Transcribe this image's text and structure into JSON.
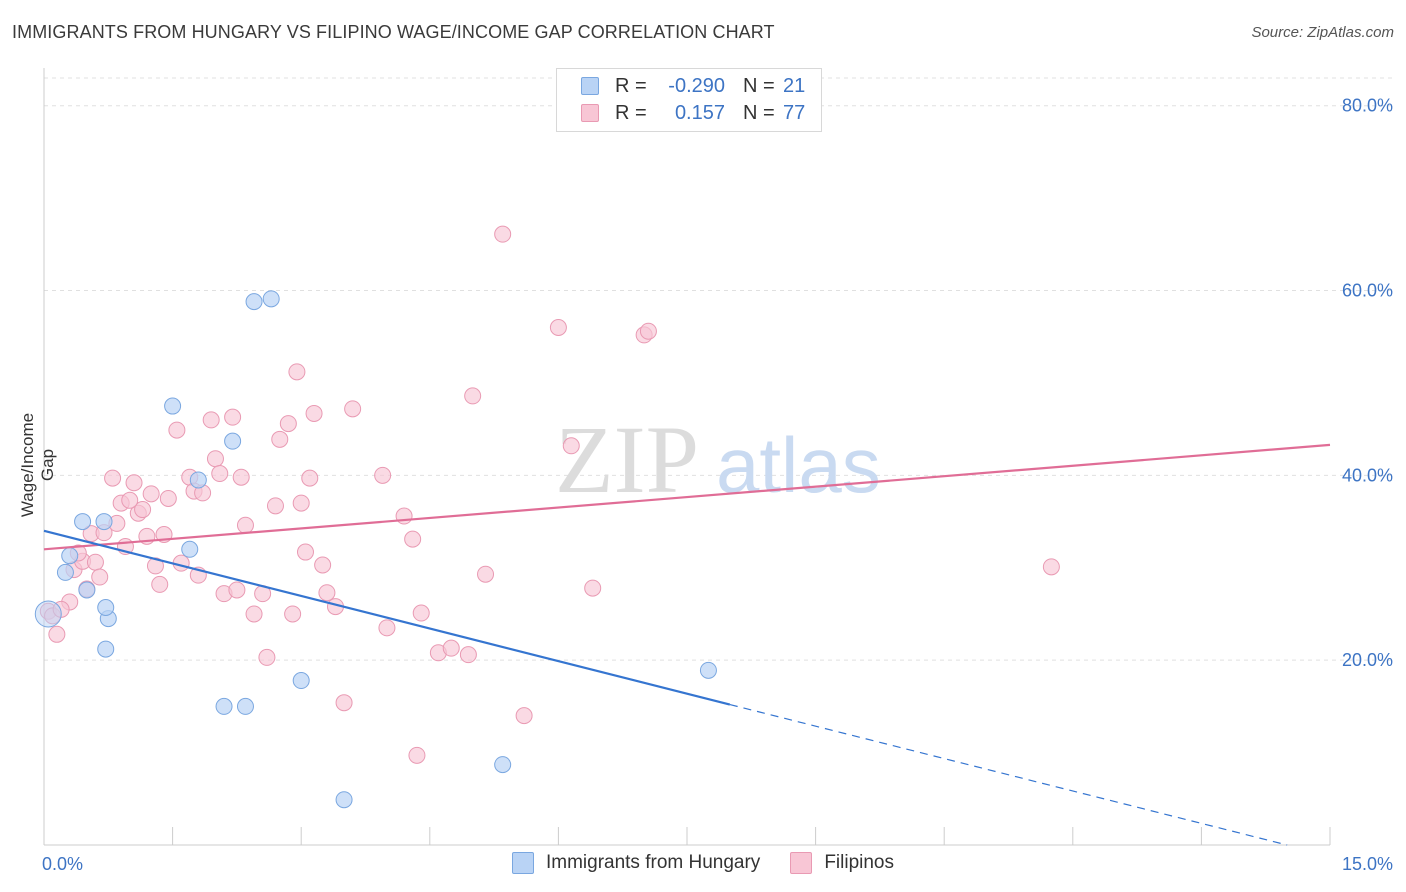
{
  "title": "IMMIGRANTS FROM HUNGARY VS FILIPINO WAGE/INCOME GAP CORRELATION CHART",
  "source": "Source: ZipAtlas.com",
  "watermark": {
    "zip": "ZIP",
    "atlas": "atlas"
  },
  "legend": {
    "series1": {
      "r_label": "R =",
      "r_value": "-0.290",
      "n_label": "N =",
      "n_value": "21"
    },
    "series2": {
      "r_label": "R =",
      "r_value": "0.157",
      "n_label": "N =",
      "n_value": "77"
    }
  },
  "colors": {
    "blue_fill": "#b9d3f5",
    "blue_stroke": "#7aa7e0",
    "blue_line": "#3575d0",
    "pink_fill": "#f8c6d5",
    "pink_stroke": "#e99ab3",
    "pink_line": "#e06d96",
    "tick_text": "#3d74c4",
    "grid": "#e0e0e0"
  },
  "chart_data": {
    "type": "scatter",
    "title": "IMMIGRANTS FROM HUNGARY VS FILIPINO WAGE/INCOME GAP CORRELATION CHART",
    "xlabel": "",
    "ylabel": "Wage/Income Gap",
    "xlim": [
      0,
      15
    ],
    "ylim": [
      0,
      83
    ],
    "x_tick_labels": [
      "0.0%",
      "15.0%"
    ],
    "y_ticks": [
      20,
      40,
      60,
      80
    ],
    "y_tick_labels": [
      "20.0%",
      "40.0%",
      "60.0%",
      "80.0%"
    ],
    "grid": true,
    "legend_position": "top-center",
    "series": [
      {
        "name": "Immigrants from Hungary",
        "color": "blue",
        "points": [
          [
            0.05,
            25.0
          ],
          [
            0.25,
            29.5
          ],
          [
            0.3,
            31.3
          ],
          [
            0.45,
            35.0
          ],
          [
            0.5,
            27.6
          ],
          [
            0.7,
            35.0
          ],
          [
            0.72,
            21.2
          ],
          [
            0.75,
            24.5
          ],
          [
            1.5,
            47.5
          ],
          [
            1.7,
            32.0
          ],
          [
            1.8,
            39.5
          ],
          [
            2.2,
            43.7
          ],
          [
            2.1,
            15.0
          ],
          [
            2.35,
            15.0
          ],
          [
            2.45,
            58.8
          ],
          [
            2.65,
            59.1
          ],
          [
            3.0,
            17.8
          ],
          [
            3.5,
            4.9
          ],
          [
            5.35,
            8.7
          ],
          [
            7.75,
            18.9
          ],
          [
            0.72,
            25.7
          ]
        ],
        "trend": {
          "x": [
            0.0,
            8.0
          ],
          "y": [
            34.0,
            15.2
          ],
          "dashed_to": [
            14.5,
            0.0
          ]
        }
      },
      {
        "name": "Filipinos",
        "color": "pink",
        "points": [
          [
            0.05,
            25.3
          ],
          [
            0.15,
            22.8
          ],
          [
            0.3,
            26.3
          ],
          [
            0.35,
            29.8
          ],
          [
            0.45,
            30.7
          ],
          [
            0.5,
            27.7
          ],
          [
            0.55,
            33.7
          ],
          [
            0.6,
            30.6
          ],
          [
            0.65,
            29.0
          ],
          [
            0.7,
            33.8
          ],
          [
            0.8,
            39.7
          ],
          [
            0.85,
            34.8
          ],
          [
            0.9,
            37.0
          ],
          [
            0.95,
            32.3
          ],
          [
            1.05,
            39.2
          ],
          [
            1.1,
            35.9
          ],
          [
            1.15,
            36.3
          ],
          [
            1.2,
            33.4
          ],
          [
            1.25,
            38.0
          ],
          [
            1.3,
            30.2
          ],
          [
            1.35,
            28.2
          ],
          [
            1.4,
            33.6
          ],
          [
            1.45,
            37.5
          ],
          [
            1.55,
            44.9
          ],
          [
            1.6,
            30.5
          ],
          [
            1.7,
            39.8
          ],
          [
            1.75,
            38.3
          ],
          [
            1.8,
            29.2
          ],
          [
            1.85,
            38.1
          ],
          [
            1.95,
            46.0
          ],
          [
            2.0,
            41.8
          ],
          [
            2.05,
            40.2
          ],
          [
            2.1,
            27.2
          ],
          [
            2.2,
            46.3
          ],
          [
            2.25,
            27.6
          ],
          [
            2.3,
            39.8
          ],
          [
            2.35,
            34.6
          ],
          [
            2.45,
            25.0
          ],
          [
            2.55,
            27.2
          ],
          [
            2.6,
            20.3
          ],
          [
            2.7,
            36.7
          ],
          [
            2.75,
            43.9
          ],
          [
            2.85,
            45.6
          ],
          [
            2.9,
            25.0
          ],
          [
            2.95,
            51.2
          ],
          [
            3.0,
            37.0
          ],
          [
            3.05,
            31.7
          ],
          [
            3.1,
            39.7
          ],
          [
            3.15,
            46.7
          ],
          [
            3.25,
            30.3
          ],
          [
            3.3,
            27.3
          ],
          [
            3.4,
            25.8
          ],
          [
            3.5,
            15.4
          ],
          [
            3.6,
            47.2
          ],
          [
            3.95,
            40.0
          ],
          [
            4.0,
            23.5
          ],
          [
            4.2,
            35.6
          ],
          [
            4.3,
            33.1
          ],
          [
            4.35,
            9.7
          ],
          [
            4.4,
            25.1
          ],
          [
            4.6,
            20.8
          ],
          [
            4.75,
            21.3
          ],
          [
            4.95,
            20.6
          ],
          [
            5.0,
            48.6
          ],
          [
            5.15,
            29.3
          ],
          [
            5.35,
            66.1
          ],
          [
            5.6,
            14.0
          ],
          [
            6.0,
            56.0
          ],
          [
            6.15,
            43.2
          ],
          [
            6.4,
            27.8
          ],
          [
            7.0,
            55.2
          ],
          [
            7.05,
            55.6
          ],
          [
            11.75,
            30.1
          ],
          [
            0.1,
            24.8
          ],
          [
            0.2,
            25.5
          ],
          [
            0.4,
            31.6
          ],
          [
            1.0,
            37.3
          ]
        ],
        "trend": {
          "x": [
            0.0,
            15.0
          ],
          "y": [
            32.0,
            43.3
          ]
        }
      }
    ]
  },
  "bottom_legend": {
    "item1": "Immigrants from Hungary",
    "item2": "Filipinos"
  }
}
